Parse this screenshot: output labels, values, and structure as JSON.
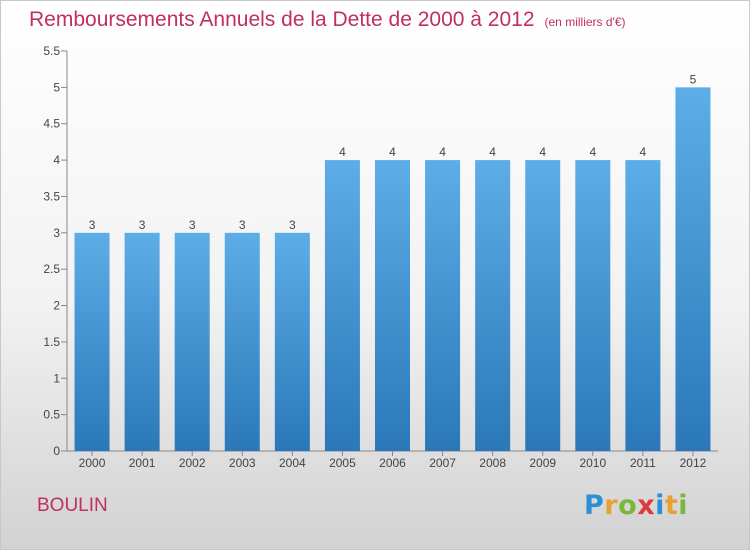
{
  "chart_data": {
    "type": "bar",
    "title": "Remboursements Annuels de la Dette de 2000 à 2012",
    "subtitle": "(en milliers d'€)",
    "categories": [
      "2000",
      "2001",
      "2002",
      "2003",
      "2004",
      "2005",
      "2006",
      "2007",
      "2008",
      "2009",
      "2010",
      "2011",
      "2012"
    ],
    "values": [
      3,
      3,
      3,
      3,
      3,
      4,
      4,
      4,
      4,
      4,
      4,
      4,
      5
    ],
    "data_labels": [
      "3",
      "3",
      "3",
      "3",
      "3",
      "4",
      "4",
      "4",
      "4",
      "4",
      "4",
      "4",
      "5"
    ],
    "ylim": [
      0,
      5.5
    ],
    "yticks": [
      0,
      0.5,
      1,
      1.5,
      2,
      2.5,
      3,
      3.5,
      4,
      4.5,
      5,
      5.5
    ],
    "ytick_labels": [
      "0",
      "0.5",
      "1",
      "1.5",
      "2",
      "2.5",
      "3",
      "3.5",
      "4",
      "4.5",
      "5",
      "5.5"
    ],
    "grid": false,
    "bar_color_top": "#5dade8",
    "bar_color_bottom": "#2a78b8",
    "xlabel": "",
    "ylabel": ""
  },
  "footer": {
    "commune": "BOULIN",
    "logo_letters": [
      "P",
      "r",
      "o",
      "x",
      "i",
      "t",
      "i"
    ]
  }
}
